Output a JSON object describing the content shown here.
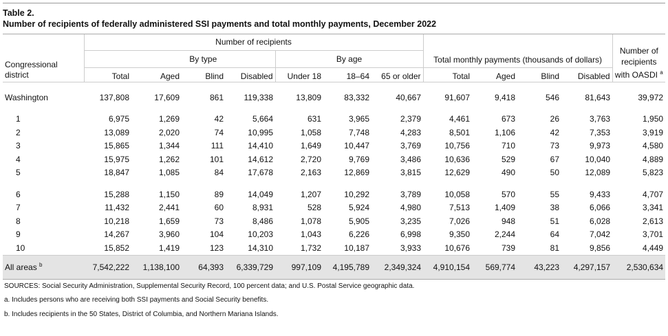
{
  "header": {
    "title": "Table 2.",
    "subtitle": "Number of recipients of federally administered SSI payments and total monthly payments, December 2022"
  },
  "table": {
    "groups": {
      "recipients": "Number of recipients",
      "by_type": "By type",
      "by_age": "By age",
      "payments": "Total monthly payments (thousands of dollars)",
      "oasdi": "Number of recipients with OASDI",
      "oasdi_note": "a"
    },
    "columns": [
      "Congressional district",
      "Total",
      "Aged",
      "Blind",
      "Disabled",
      "Under 18",
      "18–64",
      "65 or older",
      "Total",
      "Aged",
      "Blind",
      "Disabled"
    ],
    "sections": [
      [
        {
          "label": "Washington",
          "values": [
            "137,808",
            "17,609",
            "861",
            "119,338",
            "13,809",
            "83,332",
            "40,667",
            "91,607",
            "9,418",
            "546",
            "81,643",
            "39,972"
          ]
        }
      ],
      [
        {
          "label": "1",
          "values": [
            "6,975",
            "1,269",
            "42",
            "5,664",
            "631",
            "3,965",
            "2,379",
            "4,461",
            "673",
            "26",
            "3,763",
            "1,950"
          ]
        },
        {
          "label": "2",
          "values": [
            "13,089",
            "2,020",
            "74",
            "10,995",
            "1,058",
            "7,748",
            "4,283",
            "8,501",
            "1,106",
            "42",
            "7,353",
            "3,919"
          ]
        },
        {
          "label": "3",
          "values": [
            "15,865",
            "1,344",
            "111",
            "14,410",
            "1,649",
            "10,447",
            "3,769",
            "10,756",
            "710",
            "73",
            "9,973",
            "4,580"
          ]
        },
        {
          "label": "4",
          "values": [
            "15,975",
            "1,262",
            "101",
            "14,612",
            "2,720",
            "9,769",
            "3,486",
            "10,636",
            "529",
            "67",
            "10,040",
            "4,889"
          ]
        },
        {
          "label": "5",
          "values": [
            "18,847",
            "1,085",
            "84",
            "17,678",
            "2,163",
            "12,869",
            "3,815",
            "12,629",
            "490",
            "50",
            "12,089",
            "5,823"
          ]
        }
      ],
      [
        {
          "label": "6",
          "values": [
            "15,288",
            "1,150",
            "89",
            "14,049",
            "1,207",
            "10,292",
            "3,789",
            "10,058",
            "570",
            "55",
            "9,433",
            "4,707"
          ]
        },
        {
          "label": "7",
          "values": [
            "11,432",
            "2,441",
            "60",
            "8,931",
            "528",
            "5,924",
            "4,980",
            "7,513",
            "1,409",
            "38",
            "6,066",
            "3,341"
          ]
        },
        {
          "label": "8",
          "values": [
            "10,218",
            "1,659",
            "73",
            "8,486",
            "1,078",
            "5,905",
            "3,235",
            "7,026",
            "948",
            "51",
            "6,028",
            "2,613"
          ]
        },
        {
          "label": "9",
          "values": [
            "14,267",
            "3,960",
            "104",
            "10,203",
            "1,043",
            "6,226",
            "6,998",
            "9,350",
            "2,244",
            "64",
            "7,042",
            "3,701"
          ]
        },
        {
          "label": "10",
          "values": [
            "15,852",
            "1,419",
            "123",
            "14,310",
            "1,732",
            "10,187",
            "3,933",
            "10,676",
            "739",
            "81",
            "9,856",
            "4,449"
          ]
        }
      ]
    ],
    "total": {
      "label": "All areas",
      "note": "b",
      "values": [
        "7,542,222",
        "1,138,100",
        "64,393",
        "6,339,729",
        "997,109",
        "4,195,789",
        "2,349,324",
        "4,910,154",
        "569,774",
        "43,223",
        "4,297,157",
        "2,530,634"
      ]
    }
  },
  "footnotes": [
    "SOURCES: Social Security Administration, Supplemental Security Record, 100 percent data; and U.S. Postal Service geographic data.",
    "a. Includes persons who are receiving both SSI payments and Social Security benefits.",
    "b. Includes recipients in the 50 States, District of Columbia, and Northern Mariana Islands."
  ]
}
